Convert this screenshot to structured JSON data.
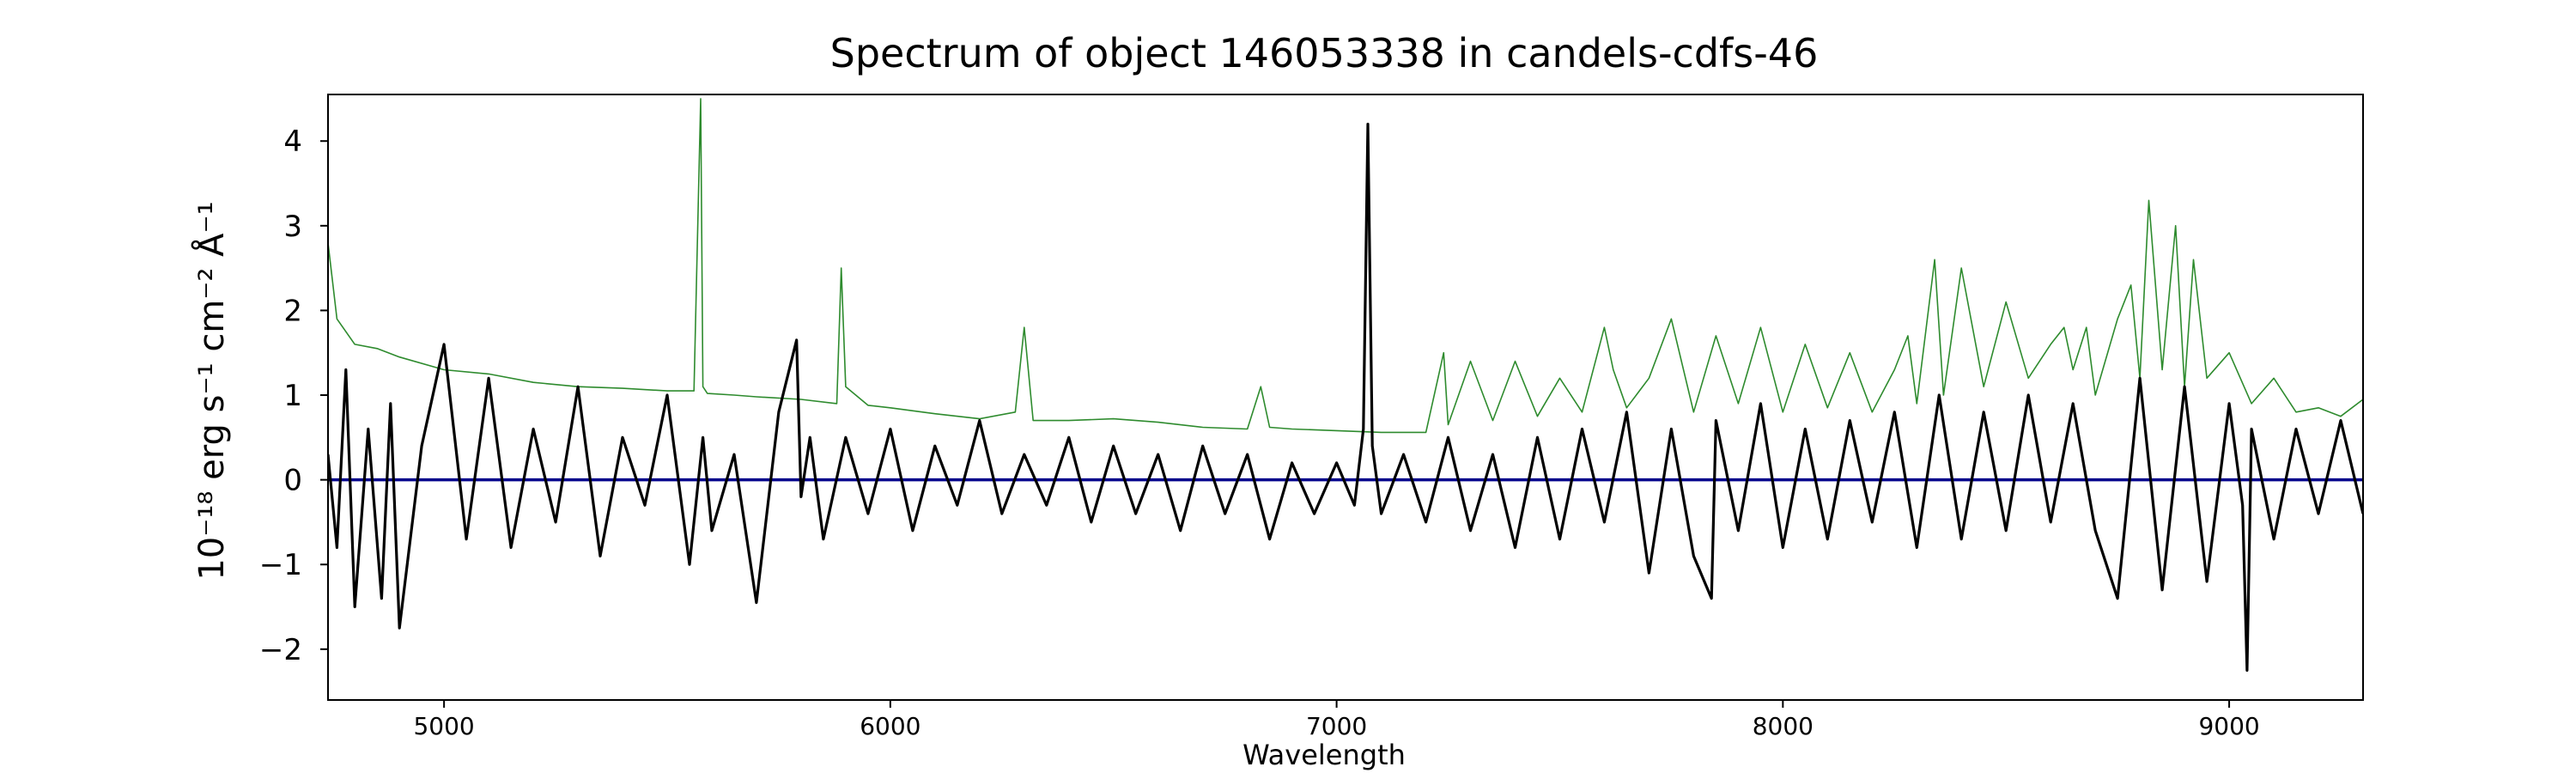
{
  "chart_data": {
    "type": "line",
    "title": "Spectrum of object 146053338 in candels-cdfs-46",
    "xlabel": "Wavelength",
    "ylabel": "10⁻¹⁸ erg s⁻¹ cm⁻² Å⁻¹",
    "xlim": [
      4740,
      9300
    ],
    "ylim": [
      -2.6,
      4.55
    ],
    "x_ticks": [
      5000,
      6000,
      7000,
      8000,
      9000
    ],
    "y_ticks": [
      -2,
      -1,
      0,
      1,
      2,
      3,
      4
    ],
    "grid": false,
    "colors": {
      "flux": "#000000",
      "sky": "#2e8b2e",
      "zero_line": "#00008b"
    },
    "series": [
      {
        "role": "flux",
        "x": [
          4740,
          4760,
          4780,
          4800,
          4830,
          4860,
          4880,
          4900,
          4950,
          5000,
          5050,
          5100,
          5150,
          5200,
          5250,
          5300,
          5350,
          5400,
          5450,
          5500,
          5550,
          5580,
          5600,
          5650,
          5700,
          5750,
          5790,
          5800,
          5820,
          5850,
          5900,
          5950,
          6000,
          6050,
          6100,
          6150,
          6200,
          6250,
          6300,
          6350,
          6400,
          6450,
          6500,
          6550,
          6600,
          6650,
          6700,
          6750,
          6800,
          6850,
          6900,
          6950,
          7000,
          7040,
          7060,
          7070,
          7080,
          7100,
          7150,
          7200,
          7250,
          7300,
          7350,
          7400,
          7450,
          7500,
          7550,
          7600,
          7650,
          7700,
          7750,
          7800,
          7840,
          7850,
          7900,
          7950,
          8000,
          8050,
          8100,
          8150,
          8200,
          8250,
          8300,
          8350,
          8400,
          8450,
          8500,
          8550,
          8600,
          8650,
          8700,
          8750,
          8800,
          8850,
          8900,
          8950,
          9000,
          9030,
          9040,
          9050,
          9100,
          9150,
          9200,
          9250,
          9300
        ],
        "y": [
          0.3,
          -0.8,
          1.3,
          -1.5,
          0.6,
          -1.4,
          0.9,
          -1.75,
          0.4,
          1.6,
          -0.7,
          1.2,
          -0.8,
          0.6,
          -0.5,
          1.1,
          -0.9,
          0.5,
          -0.3,
          1.0,
          -1.0,
          0.5,
          -0.6,
          0.3,
          -1.45,
          0.8,
          1.65,
          -0.2,
          0.5,
          -0.7,
          0.5,
          -0.4,
          0.6,
          -0.6,
          0.4,
          -0.3,
          0.7,
          -0.4,
          0.3,
          -0.3,
          0.5,
          -0.5,
          0.4,
          -0.4,
          0.3,
          -0.6,
          0.4,
          -0.4,
          0.3,
          -0.7,
          0.2,
          -0.4,
          0.2,
          -0.3,
          0.6,
          4.2,
          0.4,
          -0.4,
          0.3,
          -0.5,
          0.5,
          -0.6,
          0.3,
          -0.8,
          0.5,
          -0.7,
          0.6,
          -0.5,
          0.8,
          -1.1,
          0.6,
          -0.9,
          -1.4,
          0.7,
          -0.6,
          0.9,
          -0.8,
          0.6,
          -0.7,
          0.7,
          -0.5,
          0.8,
          -0.8,
          1.0,
          -0.7,
          0.8,
          -0.6,
          1.0,
          -0.5,
          0.9,
          -0.6,
          -1.4,
          1.2,
          -1.3,
          1.1,
          -1.2,
          0.9,
          -0.3,
          -2.25,
          0.6,
          -0.7,
          0.6,
          -0.4,
          0.7,
          -0.4
        ]
      },
      {
        "role": "sky",
        "x": [
          4740,
          4760,
          4800,
          4850,
          4900,
          5000,
          5100,
          5200,
          5300,
          5400,
          5500,
          5560,
          5575,
          5580,
          5590,
          5650,
          5700,
          5800,
          5880,
          5890,
          5900,
          5950,
          6000,
          6100,
          6200,
          6280,
          6300,
          6320,
          6400,
          6500,
          6600,
          6700,
          6800,
          6830,
          6850,
          6900,
          7000,
          7100,
          7200,
          7240,
          7250,
          7300,
          7350,
          7400,
          7450,
          7500,
          7550,
          7600,
          7620,
          7650,
          7700,
          7750,
          7800,
          7850,
          7900,
          7950,
          8000,
          8050,
          8100,
          8150,
          8200,
          8250,
          8280,
          8300,
          8340,
          8360,
          8400,
          8450,
          8500,
          8550,
          8600,
          8630,
          8650,
          8680,
          8700,
          8750,
          8780,
          8800,
          8820,
          8850,
          8880,
          8900,
          8920,
          8950,
          9000,
          9050,
          9100,
          9150,
          9200,
          9250,
          9300
        ],
        "y": [
          2.8,
          1.9,
          1.6,
          1.55,
          1.45,
          1.3,
          1.25,
          1.15,
          1.1,
          1.08,
          1.05,
          1.05,
          4.5,
          1.1,
          1.02,
          1.0,
          0.98,
          0.95,
          0.9,
          2.5,
          1.1,
          0.88,
          0.85,
          0.78,
          0.72,
          0.8,
          1.8,
          0.7,
          0.7,
          0.72,
          0.68,
          0.62,
          0.6,
          1.1,
          0.62,
          0.6,
          0.58,
          0.56,
          0.56,
          1.5,
          0.65,
          1.4,
          0.7,
          1.4,
          0.75,
          1.2,
          0.8,
          1.8,
          1.3,
          0.85,
          1.2,
          1.9,
          0.8,
          1.7,
          0.9,
          1.8,
          0.8,
          1.6,
          0.85,
          1.5,
          0.8,
          1.3,
          1.7,
          0.9,
          2.6,
          1.0,
          2.5,
          1.1,
          2.1,
          1.2,
          1.6,
          1.8,
          1.3,
          1.8,
          1.0,
          1.9,
          2.3,
          1.2,
          3.3,
          1.3,
          3.0,
          1.1,
          2.6,
          1.2,
          1.5,
          0.9,
          1.2,
          0.8,
          0.85,
          0.75,
          0.95
        ]
      },
      {
        "role": "zero_line",
        "x": [
          4740,
          9300
        ],
        "y": [
          0,
          0
        ]
      }
    ]
  }
}
